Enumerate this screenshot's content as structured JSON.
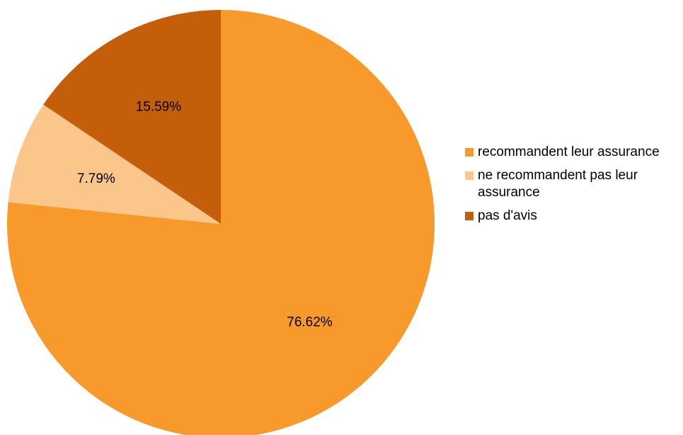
{
  "chart_data": {
    "type": "pie",
    "slices": [
      {
        "label": "recommandent leur assurance",
        "value": 76.62,
        "value_label": "76.62%",
        "color": "#F7992B"
      },
      {
        "label": "ne recommandent pas leur assurance",
        "value": 7.79,
        "value_label": "7.79%",
        "color": "#FAC68A"
      },
      {
        "label": "pas d'avis",
        "value": 15.59,
        "value_label": "15.59%",
        "color": "#C55E0A"
      }
    ],
    "start_angle_deg": 0,
    "direction": "clockwise",
    "legend_position": "right"
  }
}
